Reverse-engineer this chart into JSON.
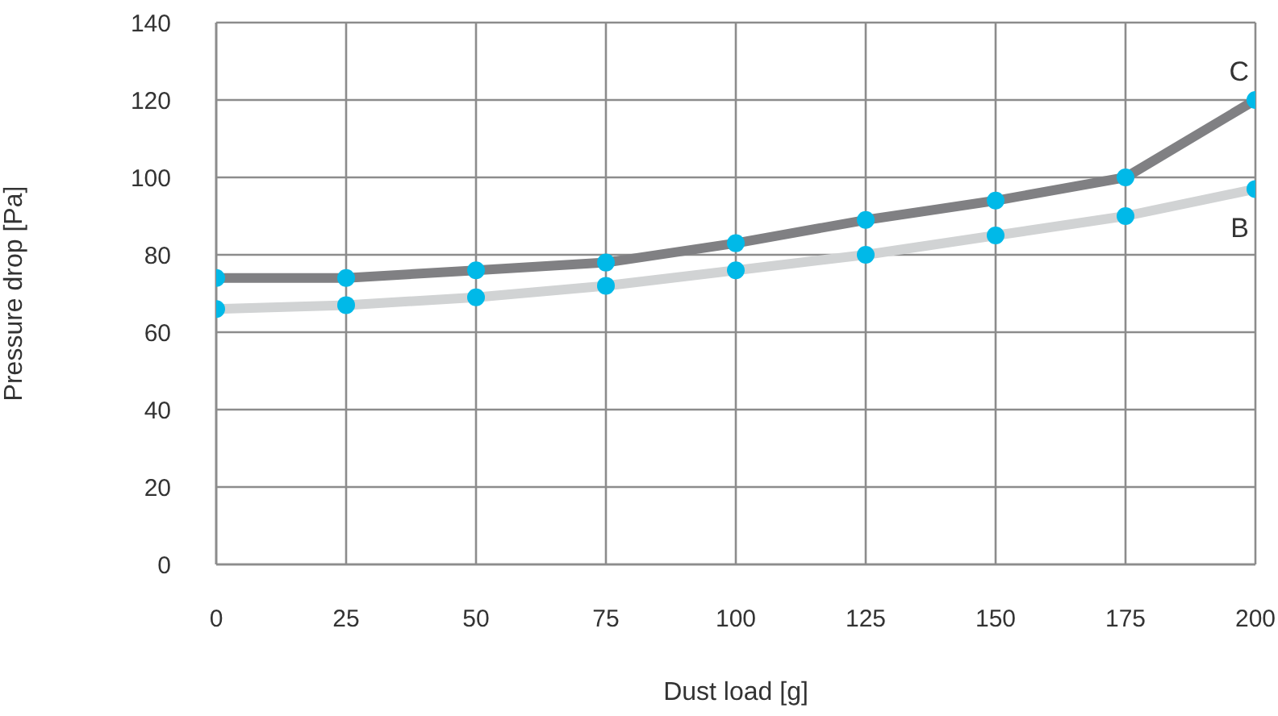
{
  "chart_data": {
    "type": "line",
    "xlabel": "Dust load [g]",
    "ylabel": "Pressure drop [Pa]",
    "x": [
      0,
      25,
      50,
      75,
      100,
      125,
      150,
      175,
      200
    ],
    "series": [
      {
        "name": "C",
        "color": "#808083",
        "values": [
          74,
          74,
          76,
          78,
          83,
          89,
          94,
          100,
          120
        ]
      },
      {
        "name": "B",
        "color": "#d1d3d4",
        "values": [
          66,
          67,
          69,
          72,
          76,
          80,
          85,
          90,
          97
        ]
      }
    ],
    "xlim": [
      0,
      200
    ],
    "xticks": [
      0,
      25,
      50,
      75,
      100,
      125,
      150,
      175,
      200
    ],
    "ylim": [
      0,
      140
    ],
    "yticks": [
      0,
      20,
      40,
      60,
      80,
      100,
      120,
      140
    ],
    "grid": true,
    "legend": false,
    "marker": "circle",
    "line_style": "solid"
  }
}
